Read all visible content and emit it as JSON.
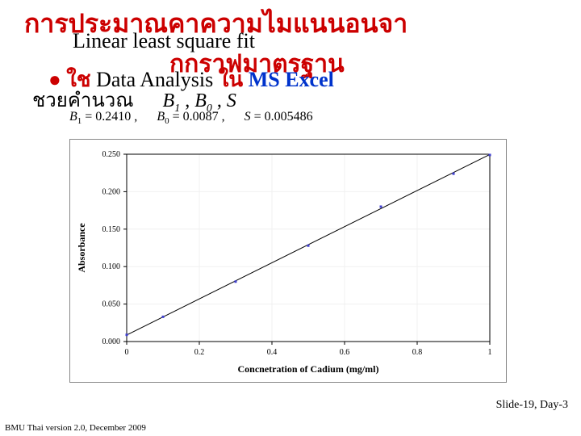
{
  "title_thai_line1": "การประมาณคาความไมแนนอนจา",
  "subtitle_en": "Linear least square fit",
  "title_thai_line2": "กกราฟมาตรฐาน",
  "bullet_thai_prefix": "ใช",
  "bullet_text1": "Data Analysis",
  "bullet_thai_mid": "ใน",
  "bullet_blue": "MS Excel",
  "line3_thai": "ชวยคำนวณ",
  "sym_B1": "B",
  "sym_B1_sub": "1",
  "sym_B0": "B",
  "sym_B0_sub": "0",
  "sym_S": "S",
  "results": {
    "b1_label": "B",
    "b1_sub": "1",
    "b1_val": "= 0.2410 ,",
    "b0_label": "B",
    "b0_sub": "0",
    "b0_val": "= 0.0087 ,",
    "s_label": "S",
    "s_val": "= 0.005486"
  },
  "chart": {
    "type": "scatter-with-line",
    "xlabel": "Concnetration of Cadium (mg/ml)",
    "ylabel": "Absorbance",
    "xlim": [
      0,
      1.0
    ],
    "ylim": [
      0.0,
      0.25
    ],
    "xticks": [
      0,
      0.2,
      0.4,
      0.6,
      0.8,
      1
    ],
    "yticks": [
      0.0,
      0.05,
      0.1,
      0.15,
      0.2,
      0.25
    ],
    "grid_color": "#f0f0f0",
    "axis_color": "#000000",
    "background_color": "#ffffff",
    "label_fontsize": 12,
    "tick_fontsize": 10,
    "points": [
      {
        "x": 0.0,
        "y": 0.009
      },
      {
        "x": 0.1,
        "y": 0.033
      },
      {
        "x": 0.3,
        "y": 0.08
      },
      {
        "x": 0.5,
        "y": 0.128
      },
      {
        "x": 0.7,
        "y": 0.18
      },
      {
        "x": 0.9,
        "y": 0.224
      },
      {
        "x": 1.0,
        "y": 0.249
      }
    ],
    "point_color": "#4040d0",
    "point_size": 3,
    "line": {
      "slope": 0.241,
      "intercept": 0.0087,
      "color": "#000000",
      "width": 1
    }
  },
  "footer_left": "BMU Thai version 2.0, December 2009",
  "footer_right": "Slide-19, Day-3"
}
